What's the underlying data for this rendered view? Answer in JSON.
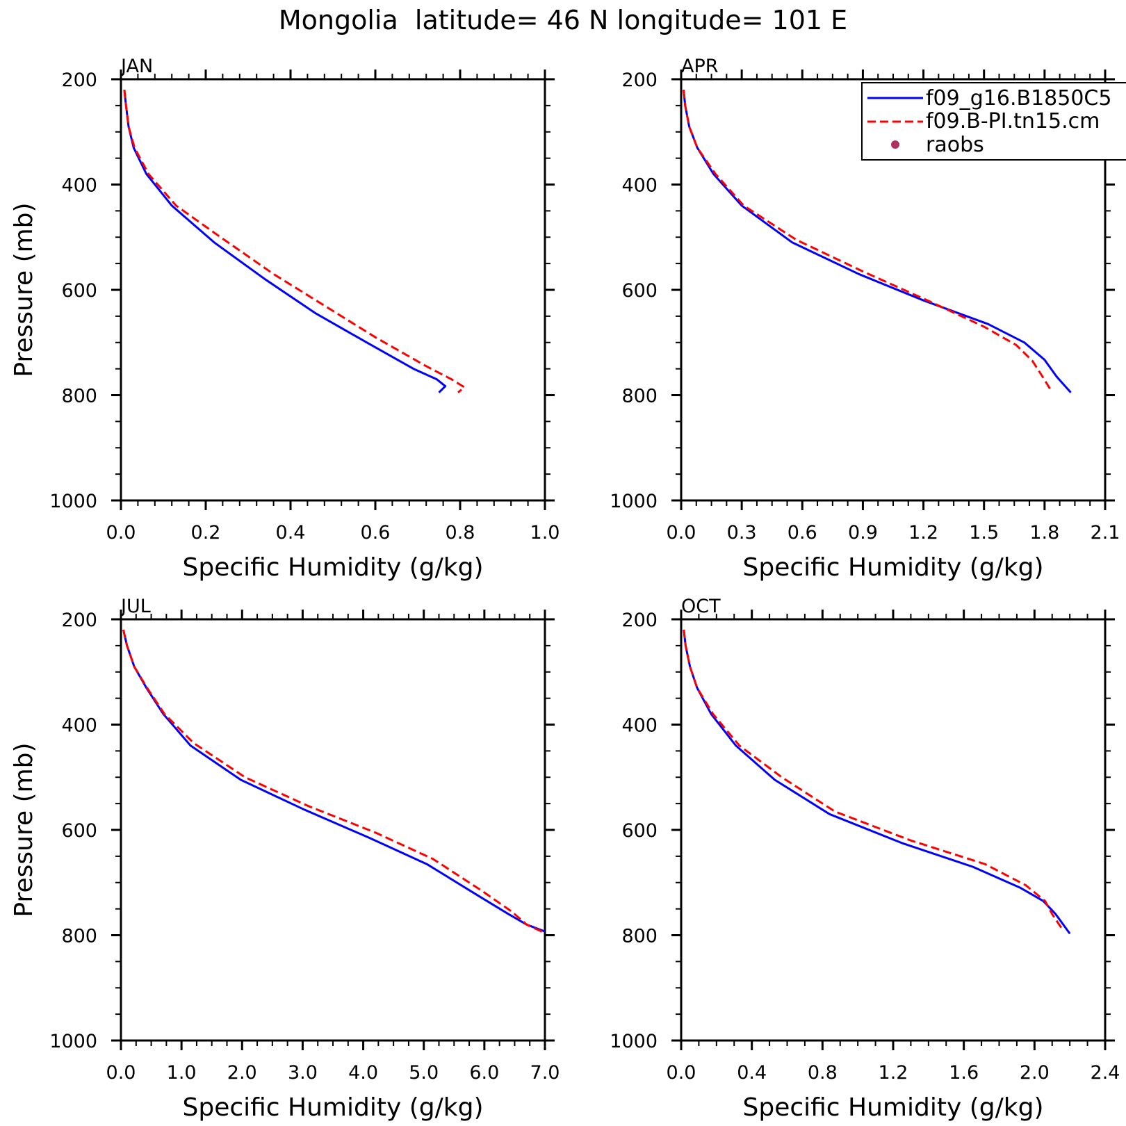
{
  "figure": {
    "title": "Mongolia  latitude= 46 N longitude= 101 E"
  },
  "legend": {
    "placement": "top-right of APR panel",
    "entries": [
      {
        "label": "f09_g16.B1850C5",
        "style": "solid",
        "color": "#0000ff"
      },
      {
        "label": "f09.B-PI.tn15.cm",
        "style": "dashed",
        "color": "#ff0000"
      },
      {
        "label": "raobs",
        "style": "dot",
        "color": "#b03060"
      }
    ]
  },
  "chart_data": [
    {
      "type": "line",
      "title": "JAN",
      "xlabel": "Specific Humidity (g/kg)",
      "ylabel": "Pressure (mb)",
      "xlim": [
        0,
        1.0
      ],
      "ylim": [
        200,
        1000
      ],
      "y_inverted": true,
      "xticks": [
        "0.0",
        "0.2",
        "0.4",
        "0.6",
        "0.8",
        "1.0"
      ],
      "yticks": [
        "200",
        "400",
        "600",
        "800",
        "1000"
      ],
      "series": [
        {
          "name": "f09_g16.B1850C5",
          "color": "#0000ff",
          "dash": "solid",
          "points": [
            [
              0.008,
              220
            ],
            [
              0.012,
              250
            ],
            [
              0.018,
              290
            ],
            [
              0.03,
              330
            ],
            [
              0.06,
              380
            ],
            [
              0.12,
              440
            ],
            [
              0.22,
              510
            ],
            [
              0.34,
              580
            ],
            [
              0.46,
              645
            ],
            [
              0.58,
              700
            ],
            [
              0.69,
              750
            ],
            [
              0.745,
              770
            ],
            [
              0.765,
              783
            ],
            [
              0.75,
              795
            ]
          ]
        },
        {
          "name": "f09.B-PI.tn15.cm",
          "color": "#ff0000",
          "dash": "dashed",
          "points": [
            [
              0.008,
              220
            ],
            [
              0.012,
              250
            ],
            [
              0.018,
              290
            ],
            [
              0.032,
              330
            ],
            [
              0.065,
              380
            ],
            [
              0.13,
              440
            ],
            [
              0.235,
              500
            ],
            [
              0.36,
              570
            ],
            [
              0.48,
              630
            ],
            [
              0.6,
              690
            ],
            [
              0.72,
              745
            ],
            [
              0.78,
              770
            ],
            [
              0.81,
              785
            ],
            [
              0.795,
              795
            ]
          ]
        }
      ]
    },
    {
      "type": "line",
      "title": "APR",
      "xlabel": "Specific Humidity (g/kg)",
      "ylabel": "",
      "xlim": [
        0,
        2.1
      ],
      "ylim": [
        200,
        1000
      ],
      "y_inverted": true,
      "xticks": [
        "0.0",
        "0.3",
        "0.6",
        "0.9",
        "1.2",
        "1.5",
        "1.8",
        "2.1"
      ],
      "yticks": [
        "200",
        "400",
        "600",
        "800",
        "1000"
      ],
      "series": [
        {
          "name": "f09_g16.B1850C5",
          "color": "#0000ff",
          "dash": "solid",
          "points": [
            [
              0.012,
              220
            ],
            [
              0.02,
              250
            ],
            [
              0.04,
              290
            ],
            [
              0.08,
              330
            ],
            [
              0.16,
              380
            ],
            [
              0.3,
              440
            ],
            [
              0.55,
              510
            ],
            [
              0.88,
              570
            ],
            [
              1.2,
              620
            ],
            [
              1.52,
              665
            ],
            [
              1.7,
              700
            ],
            [
              1.8,
              733
            ],
            [
              1.86,
              765
            ],
            [
              1.93,
              795
            ]
          ]
        },
        {
          "name": "f09.B-PI.tn15.cm",
          "color": "#ff0000",
          "dash": "dashed",
          "points": [
            [
              0.012,
              220
            ],
            [
              0.02,
              250
            ],
            [
              0.04,
              290
            ],
            [
              0.08,
              330
            ],
            [
              0.17,
              380
            ],
            [
              0.31,
              440
            ],
            [
              0.57,
              505
            ],
            [
              0.9,
              565
            ],
            [
              1.22,
              620
            ],
            [
              1.5,
              670
            ],
            [
              1.66,
              705
            ],
            [
              1.74,
              735
            ],
            [
              1.79,
              765
            ],
            [
              1.83,
              790
            ]
          ]
        }
      ]
    },
    {
      "type": "line",
      "title": "JUL",
      "xlabel": "Specific Humidity (g/kg)",
      "ylabel": "Pressure (mb)",
      "xlim": [
        0,
        7.0
      ],
      "ylim": [
        200,
        1000
      ],
      "y_inverted": true,
      "xticks": [
        "0.0",
        "1.0",
        "2.0",
        "3.0",
        "4.0",
        "5.0",
        "6.0",
        "7.0"
      ],
      "yticks": [
        "200",
        "400",
        "600",
        "800",
        "1000"
      ],
      "series": [
        {
          "name": "f09_g16.B1850C5",
          "color": "#0000ff",
          "dash": "solid",
          "points": [
            [
              0.04,
              220
            ],
            [
              0.1,
              250
            ],
            [
              0.22,
              290
            ],
            [
              0.42,
              330
            ],
            [
              0.7,
              380
            ],
            [
              1.15,
              440
            ],
            [
              1.98,
              505
            ],
            [
              3.0,
              560
            ],
            [
              4.1,
              615
            ],
            [
              5.05,
              665
            ],
            [
              5.9,
              725
            ],
            [
              6.4,
              760
            ],
            [
              6.7,
              780
            ],
            [
              7.0,
              793
            ]
          ]
        },
        {
          "name": "f09.B-PI.tn15.cm",
          "color": "#ff0000",
          "dash": "dashed",
          "points": [
            [
              0.04,
              220
            ],
            [
              0.1,
              250
            ],
            [
              0.22,
              290
            ],
            [
              0.43,
              330
            ],
            [
              0.72,
              380
            ],
            [
              1.2,
              435
            ],
            [
              2.05,
              500
            ],
            [
              3.1,
              555
            ],
            [
              4.2,
              605
            ],
            [
              5.15,
              655
            ],
            [
              5.95,
              715
            ],
            [
              6.45,
              755
            ],
            [
              6.7,
              780
            ],
            [
              6.95,
              793
            ]
          ]
        }
      ]
    },
    {
      "type": "line",
      "title": "OCT",
      "xlabel": "Specific Humidity (g/kg)",
      "ylabel": "",
      "xlim": [
        0,
        2.4
      ],
      "ylim": [
        200,
        1000
      ],
      "y_inverted": true,
      "xticks": [
        "0.0",
        "0.4",
        "0.8",
        "1.2",
        "1.6",
        "2.0",
        "2.4"
      ],
      "yticks": [
        "200",
        "400",
        "600",
        "800",
        "1000"
      ],
      "series": [
        {
          "name": "f09_g16.B1850C5",
          "color": "#0000ff",
          "dash": "solid",
          "points": [
            [
              0.015,
              220
            ],
            [
              0.025,
              250
            ],
            [
              0.05,
              290
            ],
            [
              0.09,
              330
            ],
            [
              0.17,
              380
            ],
            [
              0.31,
              440
            ],
            [
              0.53,
              505
            ],
            [
              0.84,
              570
            ],
            [
              1.25,
              625
            ],
            [
              1.65,
              670
            ],
            [
              1.92,
              710
            ],
            [
              2.05,
              735
            ],
            [
              2.12,
              760
            ],
            [
              2.2,
              797
            ]
          ]
        },
        {
          "name": "f09.B-PI.tn15.cm",
          "color": "#ff0000",
          "dash": "dashed",
          "points": [
            [
              0.015,
              220
            ],
            [
              0.025,
              250
            ],
            [
              0.05,
              290
            ],
            [
              0.09,
              330
            ],
            [
              0.18,
              380
            ],
            [
              0.33,
              440
            ],
            [
              0.57,
              500
            ],
            [
              0.87,
              565
            ],
            [
              1.3,
              620
            ],
            [
              1.72,
              665
            ],
            [
              1.95,
              705
            ],
            [
              2.06,
              735
            ],
            [
              2.1,
              760
            ],
            [
              2.16,
              790
            ]
          ]
        }
      ]
    }
  ]
}
